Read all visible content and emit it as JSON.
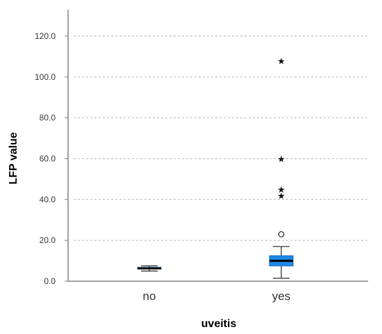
{
  "chart_data": {
    "type": "box",
    "xlabel": "uveitis",
    "ylabel": "LFP value",
    "ylim": [
      0,
      120
    ],
    "y_ticks": [
      0,
      20,
      40,
      60,
      80,
      100,
      120
    ],
    "y_tick_labels": [
      "0.0",
      "20.0",
      "40.0",
      "60.0",
      "80.0",
      "100.0",
      "120.0"
    ],
    "grid": "horizontal dotted",
    "categories": [
      "no",
      "yes"
    ],
    "boxes": [
      {
        "category": "no",
        "whisker_low": 5.0,
        "q1": 6.0,
        "median": 6.3,
        "q3": 6.8,
        "whisker_high": 7.5,
        "outliers": [],
        "extremes": []
      },
      {
        "category": "yes",
        "whisker_low": 1.5,
        "q1": 7.5,
        "median": 10.0,
        "q3": 12.5,
        "whisker_high": 17.0,
        "outliers": [
          23.0
        ],
        "extremes": [
          42.0,
          45.0,
          60.0,
          108.0
        ]
      }
    ],
    "colors": {
      "box_fill": "#1e88e5",
      "median": "#000000",
      "grid": "#bfbfbf",
      "axis": "#808080"
    }
  }
}
